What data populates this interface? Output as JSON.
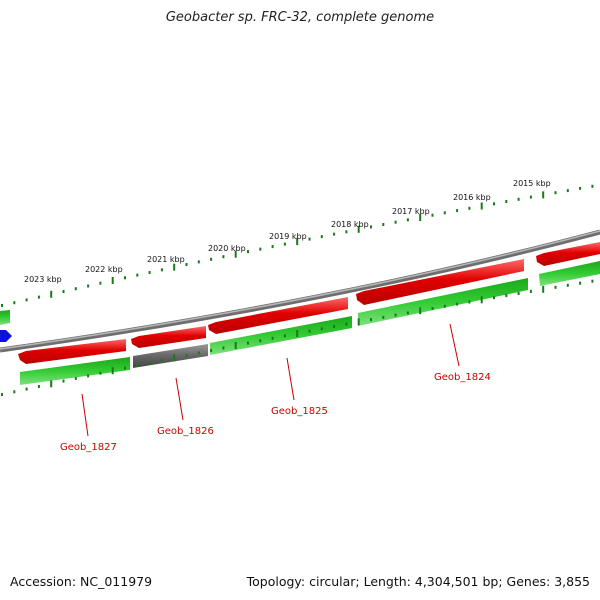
{
  "title": "Geobacter sp. FRC-32, complete genome",
  "footer": {
    "accession": "Accession: NC_011979",
    "summary": "Topology: circular; Length: 4,304,501 bp; Genes: 3,855"
  },
  "colors": {
    "forward_gene": "#e00000",
    "reverse_gene": "#22b822",
    "pseudo_gene": "#666666",
    "backbone": "#8a8a8a",
    "ticks": "#1a7a1a",
    "label": "#cc0000",
    "marker": "#1010e0"
  },
  "scale_labels": [
    "2023 kbp",
    "2022 kbp",
    "2021 kbp",
    "2020 kbp",
    "2019 kbp",
    "2018 kbp",
    "2017 kbp",
    "2016 kbp",
    "2015 kbp"
  ],
  "gene_labels": [
    "Geob_1827",
    "Geob_1826",
    "Geob_1825",
    "Geob_1824"
  ]
}
